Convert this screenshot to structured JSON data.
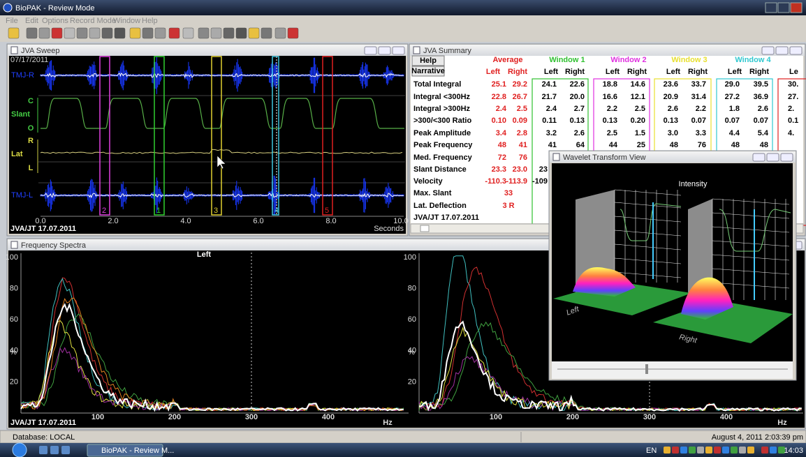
{
  "window": {
    "title": "BioPAK - Review Mode",
    "menu": [
      "File",
      "Edit",
      "Options",
      "Record Mode",
      "Window",
      "Help"
    ]
  },
  "sweep": {
    "title": "JVA Sweep",
    "date": "07/17/2011",
    "channels": [
      "TMJ-R",
      "TMJ-L"
    ],
    "slant": [
      "C",
      "Slant",
      "O"
    ],
    "lat": [
      "R",
      "Lat",
      "L"
    ],
    "xticks": [
      "0.0",
      "2.0",
      "4.0",
      "6.0",
      "8.0",
      "10.0"
    ],
    "xunit": "Seconds",
    "markers": [
      "2",
      "1",
      "3",
      "4",
      "5"
    ],
    "footer": "JVA/JT 17.07.2011"
  },
  "summary": {
    "title": "JVA Summary",
    "buttons": [
      "Help",
      "Narrative"
    ],
    "groups": [
      "Average",
      "Window 1",
      "Window 2",
      "Window 3",
      "Window 4"
    ],
    "columns": [
      "Left",
      "Right",
      "Left",
      "Right",
      "Left",
      "Right",
      "Left",
      "Right",
      "Left",
      "Right",
      "Le"
    ],
    "rows": [
      {
        "label": "Total Integral",
        "cells": [
          "25.1",
          "29.2",
          "24.1",
          "22.6",
          "18.8",
          "14.6",
          "23.6",
          "33.7",
          "29.0",
          "39.5",
          "30."
        ]
      },
      {
        "label": "Integral <300Hz",
        "cells": [
          "22.8",
          "26.7",
          "21.7",
          "20.0",
          "16.6",
          "12.1",
          "20.9",
          "31.4",
          "27.2",
          "36.9",
          "27."
        ]
      },
      {
        "label": "Integral >300Hz",
        "cells": [
          "2.4",
          "2.5",
          "2.4",
          "2.7",
          "2.2",
          "2.5",
          "2.6",
          "2.2",
          "1.8",
          "2.6",
          "2."
        ]
      },
      {
        "label": ">300/<300 Ratio",
        "cells": [
          "0.10",
          "0.09",
          "0.11",
          "0.13",
          "0.13",
          "0.20",
          "0.13",
          "0.07",
          "0.07",
          "0.07",
          "0.1"
        ]
      },
      {
        "label": "Peak Amplitude",
        "cells": [
          "3.4",
          "2.8",
          "3.2",
          "2.6",
          "2.5",
          "1.5",
          "3.0",
          "3.3",
          "4.4",
          "5.4",
          "4."
        ]
      },
      {
        "label": "Peak Frequency",
        "cells": [
          "48",
          "41",
          "41",
          "64",
          "44",
          "25",
          "48",
          "76",
          "48",
          "48"
        ]
      },
      {
        "label": "Med. Frequency",
        "cells": [
          "72",
          "76"
        ]
      },
      {
        "label": "Slant Distance",
        "cells": [
          "23.3",
          "23.0",
          "23"
        ]
      },
      {
        "label": "Velocity",
        "cells": [
          "-110.3",
          "-113.9",
          "-109"
        ]
      },
      {
        "label": "Max. Slant",
        "average": "33"
      },
      {
        "label": "Lat. Deflection",
        "average": "3 R"
      }
    ],
    "footer": "JVA/JT 17.07.2011"
  },
  "spectra": {
    "title": "Frequency Spectra",
    "side": "Left",
    "yticks": [
      "100",
      "80",
      "60",
      "40",
      "20"
    ],
    "ylabel": "%",
    "xticks": [
      "100",
      "200",
      "300",
      "400"
    ],
    "xunit": "Hz",
    "footer": "JVA/JT 17.07.2011"
  },
  "wavelet": {
    "title": "Wavelet Transform View",
    "axis": "Intensity",
    "left": "Left",
    "right": "Right"
  },
  "status": {
    "database": "Database: LOCAL",
    "datetime": "August 4, 2011 2:03:39 pm"
  },
  "taskbar": {
    "task": "BioPAK - Review M...",
    "lang": "EN",
    "clock": "14:03"
  }
}
